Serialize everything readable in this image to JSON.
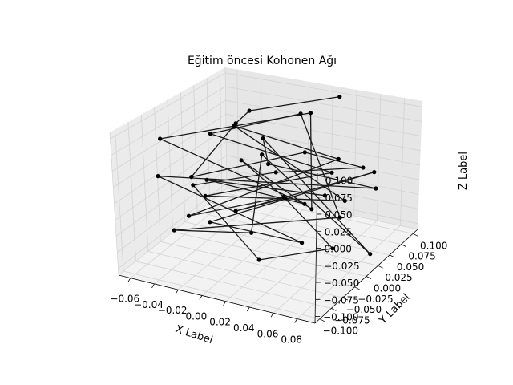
{
  "chart_data": {
    "type": "line3d",
    "title": "Eğitim öncesi Kohonen Ağı",
    "xlabel": "X Label",
    "ylabel": "Y Label",
    "zlabel": "Z Label",
    "xlim": [
      -0.07,
      0.095
    ],
    "ylim": [
      -0.11,
      0.11
    ],
    "zlim": [
      -0.11,
      0.11
    ],
    "x_ticks": [
      "−0.06",
      "−0.04",
      "−0.02",
      "0.00",
      "0.02",
      "0.04",
      "0.06",
      "0.08"
    ],
    "y_ticks": [
      "−0.100",
      "−0.075",
      "−0.050",
      "−0.025",
      "0.000",
      "0.025",
      "0.050",
      "0.075",
      "0.100"
    ],
    "z_ticks": [
      "−0.100",
      "−0.075",
      "−0.050",
      "−0.025",
      "0.000",
      "0.025",
      "0.050",
      "0.075",
      "0.100"
    ],
    "grid": true,
    "line_color": "#1a1a1a",
    "marker_color": "#000000",
    "points": [
      [
        0.03,
        0.1,
        0.1
      ],
      [
        -0.02,
        0.04,
        0.09
      ],
      [
        -0.04,
        0.06,
        0.05
      ],
      [
        -0.01,
        -0.1,
        0.06
      ],
      [
        0.05,
        -0.02,
        0.08
      ],
      [
        0.09,
        0.0,
        0.06
      ],
      [
        0.01,
        0.02,
        0.01
      ],
      [
        -0.06,
        0.02,
        -0.04
      ],
      [
        0.02,
        -0.04,
        -0.09
      ],
      [
        0.07,
        -0.01,
        -0.07
      ],
      [
        0.0,
        0.06,
        -0.06
      ],
      [
        -0.03,
        -0.06,
        -0.03
      ],
      [
        0.05,
        0.05,
        0.03
      ],
      [
        -0.05,
        0.08,
        0.03
      ],
      [
        0.04,
        0.09,
        -0.07
      ],
      [
        -0.02,
        -0.05,
        0.0
      ],
      [
        0.08,
        -0.04,
        0.07
      ],
      [
        -0.04,
        0.01,
        0.06
      ],
      [
        0.01,
        0.07,
        0.08
      ],
      [
        0.06,
        0.03,
        -0.05
      ],
      [
        -0.06,
        -0.02,
        -0.09
      ],
      [
        0.03,
        -0.08,
        -0.02
      ],
      [
        -0.01,
        0.04,
        0.02
      ],
      [
        0.09,
        0.02,
        -0.09
      ],
      [
        -0.03,
        0.09,
        0.01
      ],
      [
        0.02,
        -0.02,
        0.05
      ],
      [
        0.07,
        0.08,
        -0.03
      ],
      [
        -0.05,
        -0.07,
        0.03
      ],
      [
        0.04,
        0.0,
        -0.08
      ],
      [
        0.0,
        -0.09,
        -0.01
      ],
      [
        0.08,
        0.05,
        0.02
      ],
      [
        -0.02,
        0.01,
        -0.06
      ],
      [
        0.05,
        -0.06,
        0.03
      ],
      [
        -0.04,
        0.07,
        -0.02
      ],
      [
        0.06,
        -0.03,
        0.0
      ],
      [
        0.01,
        0.09,
        0.07
      ],
      [
        -0.06,
        -0.04,
        0.07
      ],
      [
        0.03,
        0.03,
        -0.04
      ],
      [
        -0.01,
        -0.07,
        0.04
      ],
      [
        0.09,
        -0.08,
        0.06
      ]
    ]
  }
}
